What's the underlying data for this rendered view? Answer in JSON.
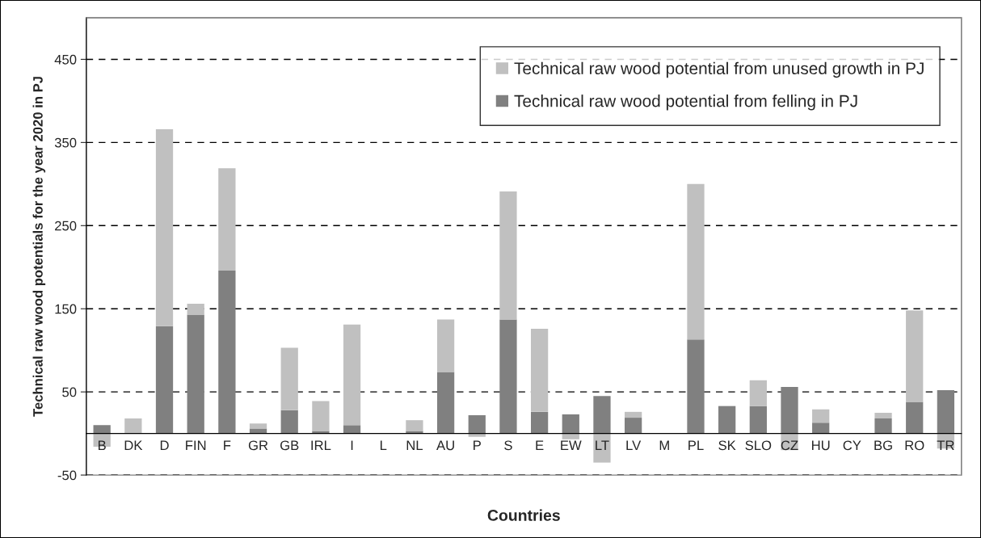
{
  "chart_data": {
    "type": "bar",
    "stacked": true,
    "xlabel": "Countries",
    "ylabel": "Technical raw wood potentials for the year 2020 in PJ",
    "categories": [
      "B",
      "DK",
      "D",
      "FIN",
      "F",
      "GR",
      "GB",
      "IRL",
      "I",
      "L",
      "NL",
      "AU",
      "P",
      "S",
      "E",
      "EW",
      "LT",
      "LV",
      "M",
      "PL",
      "SK",
      "SLO",
      "CZ",
      "HU",
      "CY",
      "BG",
      "RO",
      "TR"
    ],
    "series": [
      {
        "name": "Technical raw wood potential from felling in PJ",
        "color": "#808080",
        "values": [
          10,
          0,
          129,
          143,
          196,
          6,
          28,
          3,
          10,
          0,
          3,
          74,
          22,
          137,
          26,
          23,
          45,
          19,
          0,
          113,
          33,
          33,
          56,
          13,
          0,
          18,
          38,
          52
        ]
      },
      {
        "name": "Technical raw wood potential from unused growth in PJ",
        "color": "#c0c0c0",
        "values": [
          -16,
          18,
          237,
          13,
          123,
          6,
          75,
          36,
          121,
          0,
          13,
          63,
          -4,
          154,
          100,
          -7,
          -35,
          7,
          0,
          187,
          0,
          31,
          -20,
          16,
          0,
          7,
          110,
          -18
        ]
      }
    ],
    "ylim": [
      -50,
      500
    ],
    "yticks": [
      -50,
      50,
      150,
      250,
      350,
      450
    ],
    "grid": "y",
    "legend": "top right"
  }
}
